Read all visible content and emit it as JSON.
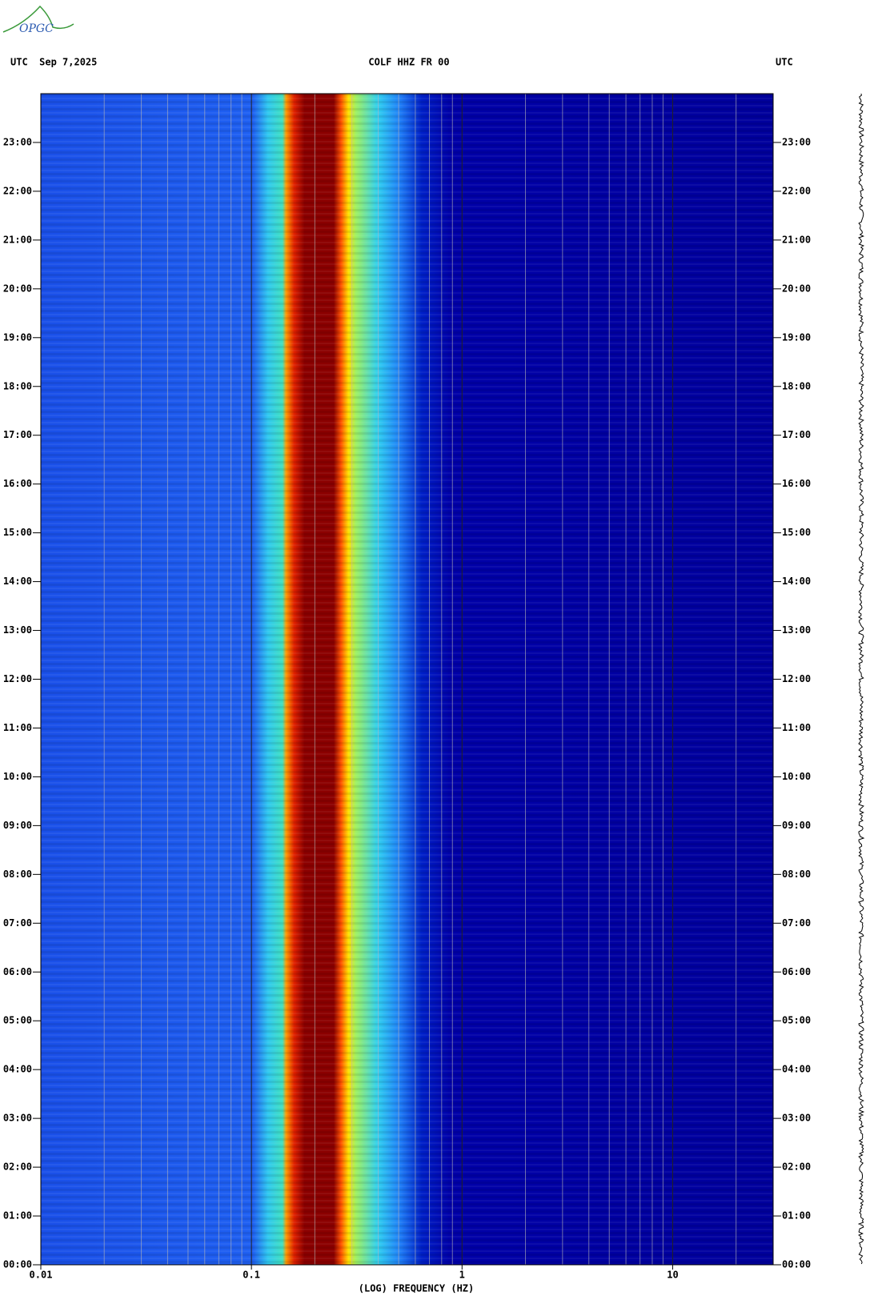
{
  "logo": "OPGC",
  "chart_data": {
    "type": "spectrogram",
    "header_left": "UTC  Sep 7,2025",
    "title": "COLF HHZ FR 00",
    "header_right": "UTC",
    "xlabel": "(LOG) FREQUENCY (HZ)",
    "xscale": "log",
    "xlim": [
      0.01,
      30
    ],
    "xticks": [
      {
        "value": 0.01,
        "label": "0.01"
      },
      {
        "value": 0.1,
        "label": "0.1"
      },
      1,
      10
    ],
    "x_minor_ticks": [
      0.02,
      0.03,
      0.04,
      0.05,
      0.06,
      0.07,
      0.08,
      0.09,
      0.2,
      0.3,
      0.4,
      0.5,
      0.6,
      0.7,
      0.8,
      0.9,
      2,
      3,
      4,
      5,
      6,
      7,
      8,
      9,
      20
    ],
    "ylim": [
      0,
      24
    ],
    "yticks": [
      {
        "value": 0,
        "label": "00:00"
      },
      {
        "value": 1,
        "label": "01:00"
      },
      {
        "value": 2,
        "label": "02:00"
      },
      {
        "value": 3,
        "label": "03:00"
      },
      {
        "value": 4,
        "label": "04:00"
      },
      {
        "value": 5,
        "label": "05:00"
      },
      {
        "value": 6,
        "label": "06:00"
      },
      {
        "value": 7,
        "label": "07:00"
      },
      {
        "value": 8,
        "label": "08:00"
      },
      {
        "value": 9,
        "label": "09:00"
      },
      {
        "value": 10,
        "label": "10:00"
      },
      {
        "value": 11,
        "label": "11:00"
      },
      {
        "value": 12,
        "label": "12:00"
      },
      {
        "value": 13,
        "label": "13:00"
      },
      {
        "value": 14,
        "label": "14:00"
      },
      {
        "value": 15,
        "label": "15:00"
      },
      {
        "value": 16,
        "label": "16:00"
      },
      {
        "value": 17,
        "label": "17:00"
      },
      {
        "value": 18,
        "label": "18:00"
      },
      {
        "value": 19,
        "label": "19:00"
      },
      {
        "value": 20,
        "label": "20:00"
      },
      {
        "value": 21,
        "label": "21:00"
      },
      {
        "value": 22,
        "label": "22:00"
      },
      {
        "value": 23,
        "label": "23:00"
      }
    ]
  }
}
